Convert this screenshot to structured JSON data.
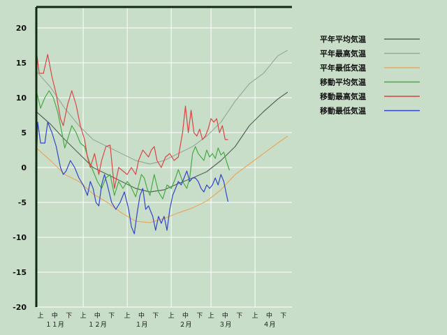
{
  "chart_data": {
    "type": "line",
    "title": "",
    "xlabel": "",
    "ylabel": "",
    "ylim": [
      -20,
      23
    ],
    "yticks": [
      20,
      15,
      10,
      5,
      0,
      -5,
      -10,
      -15,
      -20
    ],
    "xlim": [
      0,
      180
    ],
    "x_sub_ticks": [
      {
        "x": 3,
        "label": "上"
      },
      {
        "x": 13,
        "label": "中"
      },
      {
        "x": 23,
        "label": "下"
      },
      {
        "x": 33,
        "label": "上"
      },
      {
        "x": 43,
        "label": "中"
      },
      {
        "x": 53,
        "label": "下"
      },
      {
        "x": 64,
        "label": "上"
      },
      {
        "x": 74,
        "label": "中"
      },
      {
        "x": 84,
        "label": "下"
      },
      {
        "x": 95,
        "label": "上"
      },
      {
        "x": 105,
        "label": "中"
      },
      {
        "x": 115,
        "label": "下"
      },
      {
        "x": 123,
        "label": "上"
      },
      {
        "x": 133,
        "label": "中"
      },
      {
        "x": 143,
        "label": "下"
      },
      {
        "x": 154,
        "label": "上"
      },
      {
        "x": 164,
        "label": "中"
      },
      {
        "x": 174,
        "label": "下"
      }
    ],
    "x_month_ticks": [
      {
        "x": 13,
        "label": "１１月"
      },
      {
        "x": 43,
        "label": "１２月"
      },
      {
        "x": 74,
        "label": "１月"
      },
      {
        "x": 105,
        "label": "２月"
      },
      {
        "x": 133,
        "label": "３月"
      },
      {
        "x": 164,
        "label": "４月"
      }
    ],
    "grid": true,
    "legend_position": "right",
    "series": [
      {
        "name": "平年平均気温",
        "color": "#556655",
        "points": [
          [
            0,
            8
          ],
          [
            10,
            6.2
          ],
          [
            20,
            4
          ],
          [
            30,
            2
          ],
          [
            40,
            0
          ],
          [
            50,
            -1
          ],
          [
            60,
            -2
          ],
          [
            70,
            -3
          ],
          [
            80,
            -3.5
          ],
          [
            90,
            -3.2
          ],
          [
            100,
            -2.3
          ],
          [
            110,
            -1.5
          ],
          [
            120,
            -0.6
          ],
          [
            130,
            1
          ],
          [
            140,
            3
          ],
          [
            150,
            6
          ],
          [
            160,
            8
          ],
          [
            170,
            9.8
          ],
          [
            177,
            10.8
          ]
        ]
      },
      {
        "name": "平年最高気温",
        "color": "#99aa99",
        "points": [
          [
            0,
            13.8
          ],
          [
            10,
            11.5
          ],
          [
            20,
            8.5
          ],
          [
            30,
            6
          ],
          [
            40,
            4
          ],
          [
            50,
            3
          ],
          [
            60,
            2
          ],
          [
            70,
            1
          ],
          [
            80,
            0.5
          ],
          [
            90,
            1
          ],
          [
            100,
            2
          ],
          [
            110,
            3
          ],
          [
            120,
            4.5
          ],
          [
            130,
            6.5
          ],
          [
            140,
            9.5
          ],
          [
            150,
            12
          ],
          [
            160,
            13.5
          ],
          [
            170,
            16
          ],
          [
            177,
            16.8
          ]
        ]
      },
      {
        "name": "平年最低気温",
        "color": "#e8a860",
        "points": [
          [
            0,
            2.8
          ],
          [
            10,
            1
          ],
          [
            20,
            -1
          ],
          [
            30,
            -2
          ],
          [
            40,
            -3.8
          ],
          [
            50,
            -5
          ],
          [
            60,
            -6.5
          ],
          [
            70,
            -7.7
          ],
          [
            80,
            -7.9
          ],
          [
            90,
            -7.3
          ],
          [
            100,
            -6.5
          ],
          [
            110,
            -5.8
          ],
          [
            120,
            -4.8
          ],
          [
            130,
            -3.2
          ],
          [
            140,
            -1
          ],
          [
            150,
            0.5
          ],
          [
            160,
            2
          ],
          [
            170,
            3.5
          ],
          [
            177,
            4.5
          ]
        ]
      },
      {
        "name": "移動平均気温",
        "color": "#44aa44",
        "points": [
          [
            0,
            11
          ],
          [
            3,
            8.5
          ],
          [
            6,
            10
          ],
          [
            9,
            11
          ],
          [
            12,
            10
          ],
          [
            15,
            8
          ],
          [
            18,
            5
          ],
          [
            20,
            2.8
          ],
          [
            22,
            4
          ],
          [
            25,
            6
          ],
          [
            28,
            5
          ],
          [
            31,
            3.5
          ],
          [
            34,
            3
          ],
          [
            37,
            1
          ],
          [
            40,
            -0.5
          ],
          [
            43,
            -2
          ],
          [
            46,
            -3
          ],
          [
            49,
            -1.5
          ],
          [
            52,
            -1
          ],
          [
            55,
            -4
          ],
          [
            58,
            -2
          ],
          [
            61,
            -3
          ],
          [
            64,
            -2
          ],
          [
            66,
            -2.5
          ],
          [
            70,
            -4.2
          ],
          [
            74,
            -1
          ],
          [
            76,
            -1.5
          ],
          [
            78,
            -3
          ],
          [
            80,
            -4
          ],
          [
            83,
            -1
          ],
          [
            86,
            -3.5
          ],
          [
            89,
            -4.5
          ],
          [
            92,
            -2.5
          ],
          [
            95,
            -3
          ],
          [
            98,
            -1.5
          ],
          [
            100,
            -0.3
          ],
          [
            103,
            -2
          ],
          [
            106,
            -3
          ],
          [
            108,
            -1.5
          ],
          [
            110,
            2
          ],
          [
            112,
            3
          ],
          [
            114,
            2
          ],
          [
            116,
            1.5
          ],
          [
            118,
            1
          ],
          [
            120,
            2.5
          ],
          [
            122,
            1.5
          ],
          [
            124,
            2
          ],
          [
            126,
            1.3
          ],
          [
            128,
            2.8
          ],
          [
            130,
            1.8
          ],
          [
            132,
            2.2
          ],
          [
            134,
            0.8
          ],
          [
            136,
            -0.4
          ]
        ]
      },
      {
        "name": "移動最高気温",
        "color": "#dd4444",
        "points": [
          [
            0,
            16.8
          ],
          [
            2,
            13.5
          ],
          [
            5,
            13.5
          ],
          [
            8,
            16.2
          ],
          [
            11,
            13
          ],
          [
            14,
            10.5
          ],
          [
            17,
            7
          ],
          [
            19,
            6
          ],
          [
            22,
            9
          ],
          [
            25,
            11
          ],
          [
            28,
            9
          ],
          [
            31,
            6
          ],
          [
            34,
            4
          ],
          [
            36,
            1.5
          ],
          [
            38,
            0
          ],
          [
            41,
            2
          ],
          [
            44,
            -1
          ],
          [
            46,
            1
          ],
          [
            49,
            3
          ],
          [
            52,
            3.2
          ],
          [
            55,
            -3
          ],
          [
            58,
            0
          ],
          [
            61,
            -0.5
          ],
          [
            64,
            -1
          ],
          [
            67,
            0
          ],
          [
            70,
            -1
          ],
          [
            72,
            1
          ],
          [
            75,
            2.5
          ],
          [
            77,
            2
          ],
          [
            79,
            1.5
          ],
          [
            81,
            2.5
          ],
          [
            83,
            3
          ],
          [
            85,
            1
          ],
          [
            88,
            0
          ],
          [
            91,
            1.5
          ],
          [
            94,
            2
          ],
          [
            97,
            1
          ],
          [
            100,
            1.5
          ],
          [
            103,
            5
          ],
          [
            105,
            8.8
          ],
          [
            107,
            5
          ],
          [
            109,
            8.2
          ],
          [
            111,
            5
          ],
          [
            113,
            4.5
          ],
          [
            115,
            5.5
          ],
          [
            117,
            4
          ],
          [
            119,
            4.5
          ],
          [
            121,
            5.5
          ],
          [
            123,
            7
          ],
          [
            125,
            6.5
          ],
          [
            127,
            7
          ],
          [
            129,
            5
          ],
          [
            131,
            6
          ],
          [
            133,
            4
          ],
          [
            135,
            4
          ]
        ]
      },
      {
        "name": "移動最低気温",
        "color": "#3344cc",
        "points": [
          [
            0,
            0
          ],
          [
            1,
            6.5
          ],
          [
            3,
            3.5
          ],
          [
            6,
            3.5
          ],
          [
            8,
            6.5
          ],
          [
            11,
            5
          ],
          [
            14,
            3
          ],
          [
            17,
            0
          ],
          [
            19,
            -1
          ],
          [
            21,
            -0.5
          ],
          [
            24,
            1
          ],
          [
            27,
            0
          ],
          [
            30,
            -1.5
          ],
          [
            33,
            -2.5
          ],
          [
            36,
            -4
          ],
          [
            38,
            -2
          ],
          [
            40,
            -3
          ],
          [
            42,
            -5
          ],
          [
            44,
            -5.5
          ],
          [
            46,
            -2.5
          ],
          [
            48,
            -1
          ],
          [
            50,
            -2.5
          ],
          [
            53,
            -5
          ],
          [
            56,
            -6
          ],
          [
            59,
            -5
          ],
          [
            62,
            -3.5
          ],
          [
            65,
            -6
          ],
          [
            67,
            -8.5
          ],
          [
            69,
            -9.5
          ],
          [
            71,
            -6.5
          ],
          [
            73,
            -4
          ],
          [
            75,
            -3
          ],
          [
            77,
            -6
          ],
          [
            79,
            -5.5
          ],
          [
            82,
            -7
          ],
          [
            84,
            -9
          ],
          [
            86,
            -7
          ],
          [
            88,
            -8
          ],
          [
            90,
            -7
          ],
          [
            92,
            -9
          ],
          [
            94,
            -6
          ],
          [
            96,
            -4
          ],
          [
            98,
            -3
          ],
          [
            100,
            -2
          ],
          [
            102,
            -2.5
          ],
          [
            104,
            -1.5
          ],
          [
            106,
            -0.5
          ],
          [
            108,
            -2
          ],
          [
            110,
            -1.5
          ],
          [
            112,
            -1.5
          ],
          [
            114,
            -2
          ],
          [
            116,
            -3
          ],
          [
            118,
            -3.5
          ],
          [
            120,
            -2.5
          ],
          [
            122,
            -3
          ],
          [
            124,
            -2.5
          ],
          [
            126,
            -1.5
          ],
          [
            128,
            -2.5
          ],
          [
            130,
            -1
          ],
          [
            132,
            -2
          ],
          [
            134,
            -4
          ],
          [
            135,
            -4.9
          ]
        ]
      }
    ]
  }
}
